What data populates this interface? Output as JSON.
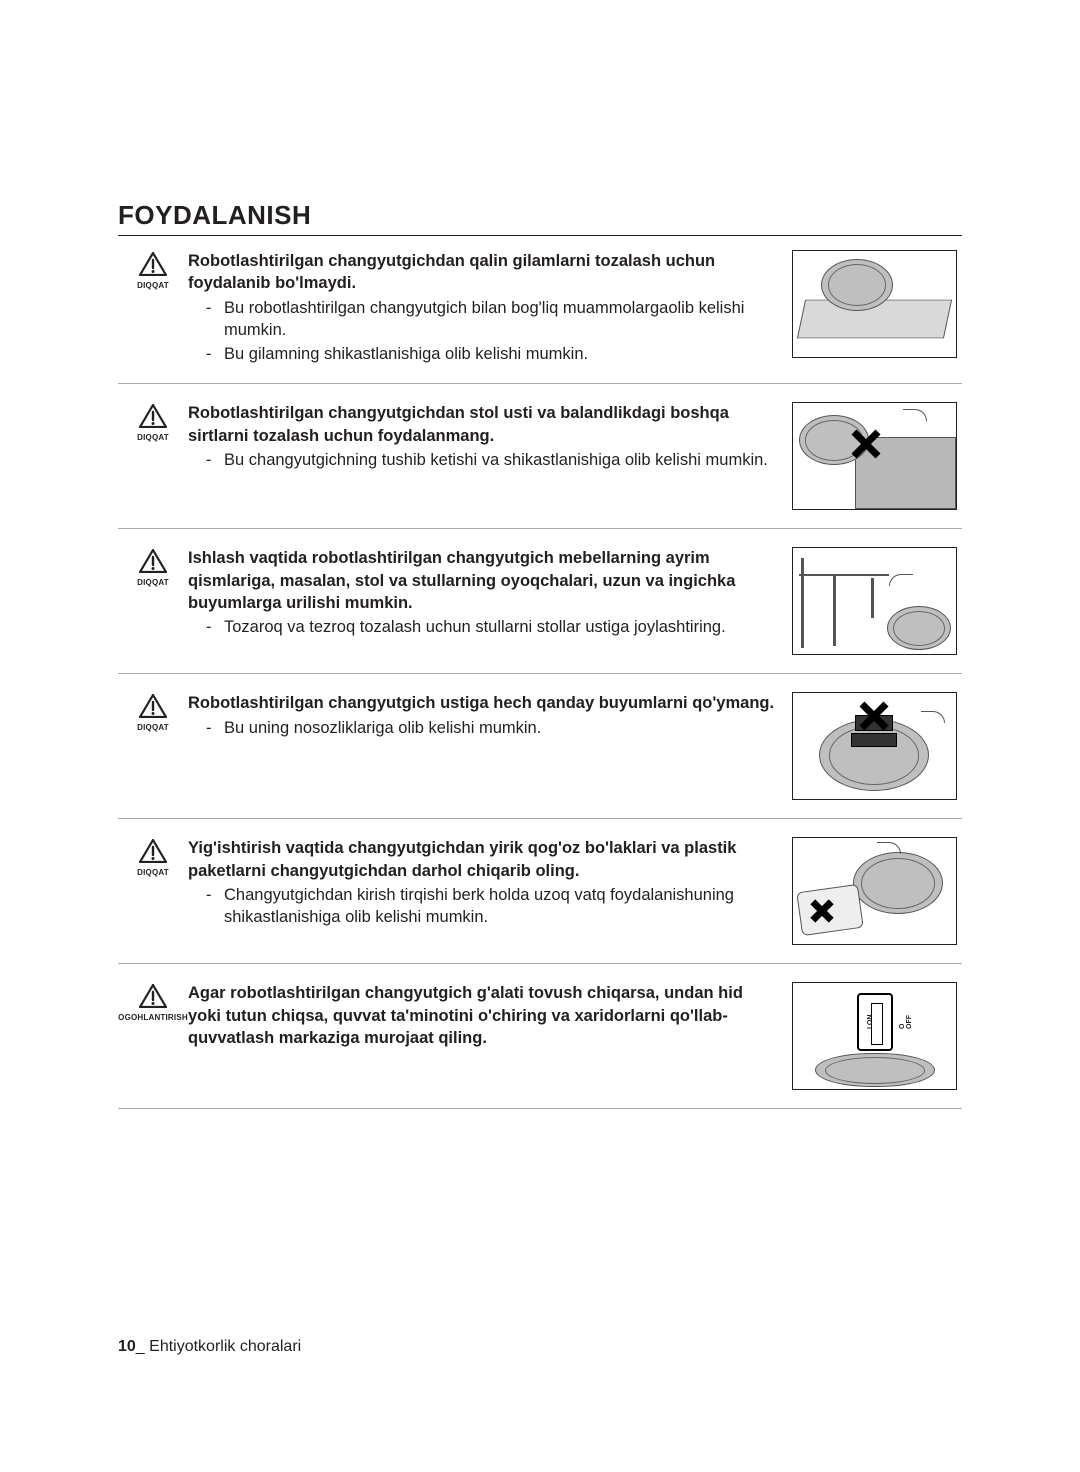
{
  "heading": "FOYDALANISH",
  "footer_page": "10",
  "footer_sep": "_ ",
  "footer_text": "Ehtiyotkorlik choralari",
  "labels": {
    "caution": "DIQQAT",
    "warning": "OGOHLANTIRISH"
  },
  "switch": {
    "on": "I ON",
    "off": "O OFF"
  },
  "items": [
    {
      "level": "caution",
      "title": "Robotlashtirilgan changyutgichdan qalin gilamlarni tozalash uchun foydalanib bo'lmaydi.",
      "bullets": [
        "Bu robotlashtirilgan changyutgich bilan bog'liq muammolargaolib kelishi mumkin.",
        "Bu gilamning shikastlanishiga olib kelishi mumkin."
      ],
      "illus": "carpet"
    },
    {
      "level": "caution",
      "title": "Robotlashtirilgan changyutgichdan stol usti va balandlikdagi boshqa sirtlarni tozalash uchun foydalanmang.",
      "bullets": [
        "Bu changyutgichning tushib ketishi va shikastlanishiga olib kelishi mumkin."
      ],
      "illus": "table"
    },
    {
      "level": "caution",
      "title": "Ishlash vaqtida robotlashtirilgan changyutgich mebellarning ayrim qismlariga, masalan, stol va stullarning oyoqchalari, uzun va ingichka buyumlarga urilishi mumkin.",
      "bullets": [
        "Tozaroq va tezroq tozalash uchun stullarni stollar ustiga joylashtiring."
      ],
      "illus": "chairs"
    },
    {
      "level": "caution",
      "title": "Robotlashtirilgan changyutgich ustiga hech qanday buyumlarni qo'ymang.",
      "bullets": [
        "Bu uning nosozliklariga olib kelishi mumkin."
      ],
      "illus": "ontop"
    },
    {
      "level": "caution",
      "title": "Yig'ishtirish vaqtida changyutgichdan yirik qog'oz bo'laklari va plastik paketlarni changyutgichdan darhol chiqarib oling.",
      "bullets": [
        "Changyutgichdan kirish tirqishi berk holda uzoq vatq foydalanishuning shikastlanishiga olib kelishi mumkin."
      ],
      "illus": "paper"
    },
    {
      "level": "warning",
      "title": "Agar robotlashtirilgan changyutgich g'alati tovush chiqarsa, undan hid yoki tutun chiqsa, quvvat ta'minotini o'chiring va xaridorlarni qo'llab-quvvatlash markaziga murojaat qiling.",
      "bullets": [],
      "illus": "switch"
    }
  ]
}
